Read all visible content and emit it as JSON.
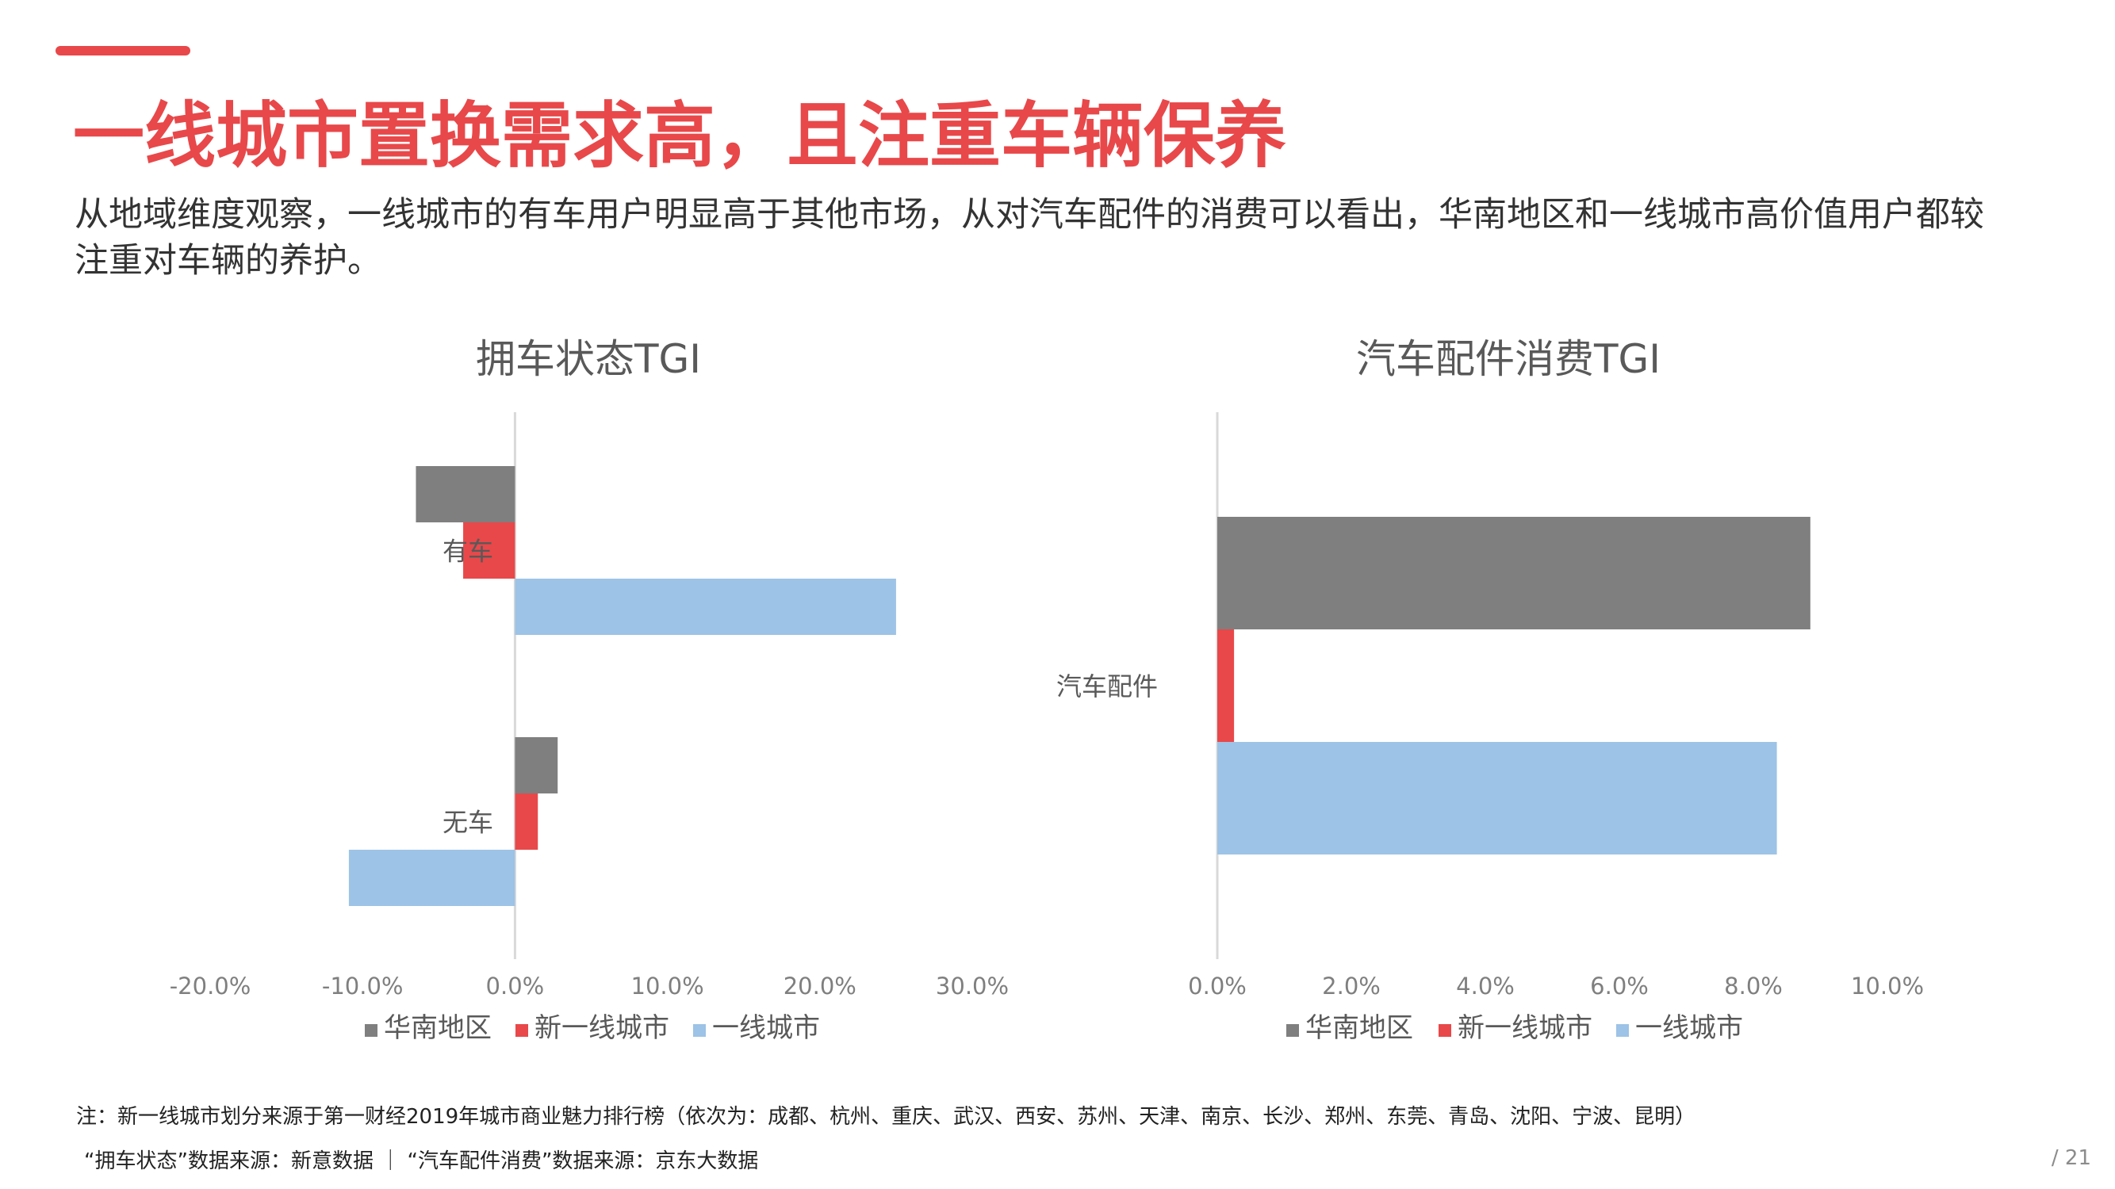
{
  "slide": {
    "title": "一线城市置换需求高，且注重车辆保养",
    "subtitle": "从地域维度观察，一线城市的有车用户明显高于其他市场，从对汽车配件的消费可以看出，华南地区和一线城市高价值用户都较注重对车辆的养护。",
    "note": "注：新一线城市划分来源于第一财经2019年城市商业魅力排行榜（依次为：成都、杭州、重庆、武汉、西安、苏州、天津、南京、长沙、郑州、东莞、青岛、沈阳、宁波、昆明）",
    "sources": "“拥车状态”数据来源：新意数据 ｜ “汽车配件消费”数据来源：京东大数据",
    "page_number": "/ 21",
    "accent_color": "#e8484a"
  },
  "chart_data": [
    {
      "type": "bar",
      "orientation": "horizontal",
      "title": "拥车状态TGI",
      "categories": [
        "有车",
        "无车"
      ],
      "series": [
        {
          "name": "华南地区",
          "values": [
            -6.5,
            2.8
          ],
          "color": "#7f7f7f"
        },
        {
          "name": "新一线城市",
          "values": [
            -3.4,
            1.5
          ],
          "color": "#e8484a"
        },
        {
          "name": "一线城市",
          "values": [
            25.0,
            -10.9
          ],
          "color": "#9dc3e6"
        }
      ],
      "xlim": [
        -20,
        30
      ],
      "ticks": [
        -20,
        -10,
        0,
        10,
        20,
        30
      ],
      "tick_labels": [
        "-20.0%",
        "-10.0%",
        "0.0%",
        "10.0%",
        "20.0%",
        "30.0%"
      ],
      "legend": "bottom"
    },
    {
      "type": "bar",
      "orientation": "horizontal",
      "title": "汽车配件消费TGI",
      "categories": [
        "汽车配件"
      ],
      "series": [
        {
          "name": "华南地区",
          "values": [
            8.85
          ],
          "color": "#7f7f7f"
        },
        {
          "name": "新一线城市",
          "values": [
            0.25
          ],
          "color": "#e8484a"
        },
        {
          "name": "一线城市",
          "values": [
            8.35
          ],
          "color": "#9dc3e6"
        }
      ],
      "xlim": [
        0,
        10
      ],
      "ticks": [
        0,
        2,
        4,
        6,
        8,
        10
      ],
      "tick_labels": [
        "0.0%",
        "2.0%",
        "4.0%",
        "6.0%",
        "8.0%",
        "10.0%"
      ],
      "legend": "bottom"
    }
  ]
}
